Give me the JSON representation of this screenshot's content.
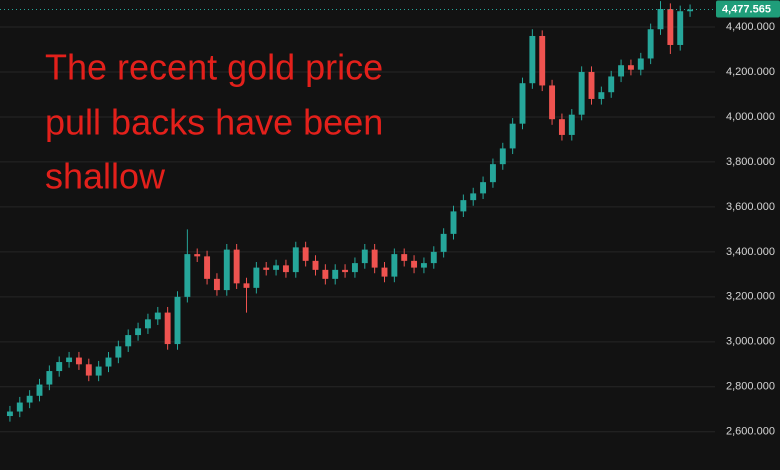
{
  "chart_data": {
    "type": "candlestick",
    "annotation": [
      "The recent gold price",
      "pull backs have been",
      "shallow"
    ],
    "open": [
      2670,
      2690,
      2730,
      2760,
      2810,
      2870,
      2910,
      2930,
      2900,
      2850,
      2890,
      2930,
      2980,
      3030,
      3060,
      3100,
      3130,
      2990,
      3200,
      3390,
      3380,
      3280,
      3230,
      3410,
      3260,
      3240,
      3330,
      3320,
      3340,
      3310,
      3420,
      3360,
      3320,
      3280,
      3320,
      3310,
      3350,
      3410,
      3330,
      3290,
      3390,
      3360,
      3330,
      3350,
      3400,
      3480,
      3580,
      3630,
      3660,
      3710,
      3790,
      3860,
      3970,
      4150,
      4360,
      4140,
      3990,
      3920,
      4010,
      4200,
      4080,
      4110,
      4180,
      4230,
      4210,
      4260,
      4390,
      4480,
      4320,
      4470
    ],
    "high": [
      2715,
      2755,
      2785,
      2835,
      2895,
      2935,
      2955,
      2955,
      2925,
      2915,
      2955,
      3005,
      3055,
      3085,
      3125,
      3155,
      3155,
      3225,
      3500,
      3415,
      3405,
      3305,
      3435,
      3435,
      3285,
      3355,
      3355,
      3365,
      3365,
      3445,
      3445,
      3385,
      3345,
      3345,
      3345,
      3375,
      3435,
      3435,
      3355,
      3415,
      3415,
      3385,
      3375,
      3425,
      3505,
      3605,
      3655,
      3685,
      3735,
      3815,
      3885,
      3995,
      4175,
      4390,
      4385,
      4165,
      4015,
      4035,
      4225,
      4225,
      4135,
      4205,
      4255,
      4255,
      4285,
      4415,
      4515,
      4505,
      4495,
      4500
    ],
    "low": [
      2645,
      2665,
      2705,
      2735,
      2785,
      2845,
      2885,
      2875,
      2825,
      2825,
      2865,
      2905,
      2955,
      3005,
      3035,
      3075,
      2965,
      2965,
      3175,
      3355,
      3255,
      3205,
      3205,
      3235,
      3130,
      3215,
      3295,
      3295,
      3285,
      3285,
      3335,
      3295,
      3255,
      3255,
      3285,
      3285,
      3325,
      3305,
      3265,
      3265,
      3335,
      3305,
      3305,
      3325,
      3375,
      3455,
      3555,
      3605,
      3635,
      3685,
      3765,
      3835,
      3945,
      4125,
      4115,
      3965,
      3895,
      3895,
      3985,
      4055,
      4055,
      4085,
      4155,
      4185,
      4185,
      4235,
      4365,
      4280,
      4295,
      4445
    ],
    "close": [
      2690,
      2730,
      2760,
      2810,
      2870,
      2910,
      2930,
      2900,
      2850,
      2890,
      2930,
      2980,
      3030,
      3060,
      3100,
      3130,
      2990,
      3200,
      3390,
      3380,
      3280,
      3230,
      3410,
      3260,
      3240,
      3330,
      3320,
      3340,
      3310,
      3420,
      3360,
      3320,
      3280,
      3320,
      3310,
      3350,
      3410,
      3330,
      3290,
      3390,
      3360,
      3330,
      3350,
      3400,
      3480,
      3580,
      3630,
      3660,
      3710,
      3790,
      3860,
      3970,
      4150,
      4360,
      4140,
      3990,
      3920,
      4010,
      4200,
      4080,
      4110,
      4180,
      4230,
      4210,
      4260,
      4390,
      4480,
      4320,
      4470,
      4477.565
    ],
    "up_color": "#26a69a",
    "down_color": "#ef5350",
    "ylim": [
      2430,
      4520
    ],
    "yticks": [
      {
        "value": 2600,
        "label": "2,600.000"
      },
      {
        "value": 2800,
        "label": "2,800.000"
      },
      {
        "value": 3000,
        "label": "3,000.000"
      },
      {
        "value": 3200,
        "label": "3,200.000"
      },
      {
        "value": 3400,
        "label": "3,400.000"
      },
      {
        "value": 3600,
        "label": "3,600.000"
      },
      {
        "value": 3800,
        "label": "3,800.000"
      },
      {
        "value": 4000,
        "label": "4,000.000"
      },
      {
        "value": 4200,
        "label": "4,200.000"
      },
      {
        "value": 4400,
        "label": "4,400.000"
      }
    ],
    "grid": true,
    "last_price": {
      "value": 4477.565,
      "label": "4,477.565"
    }
  }
}
